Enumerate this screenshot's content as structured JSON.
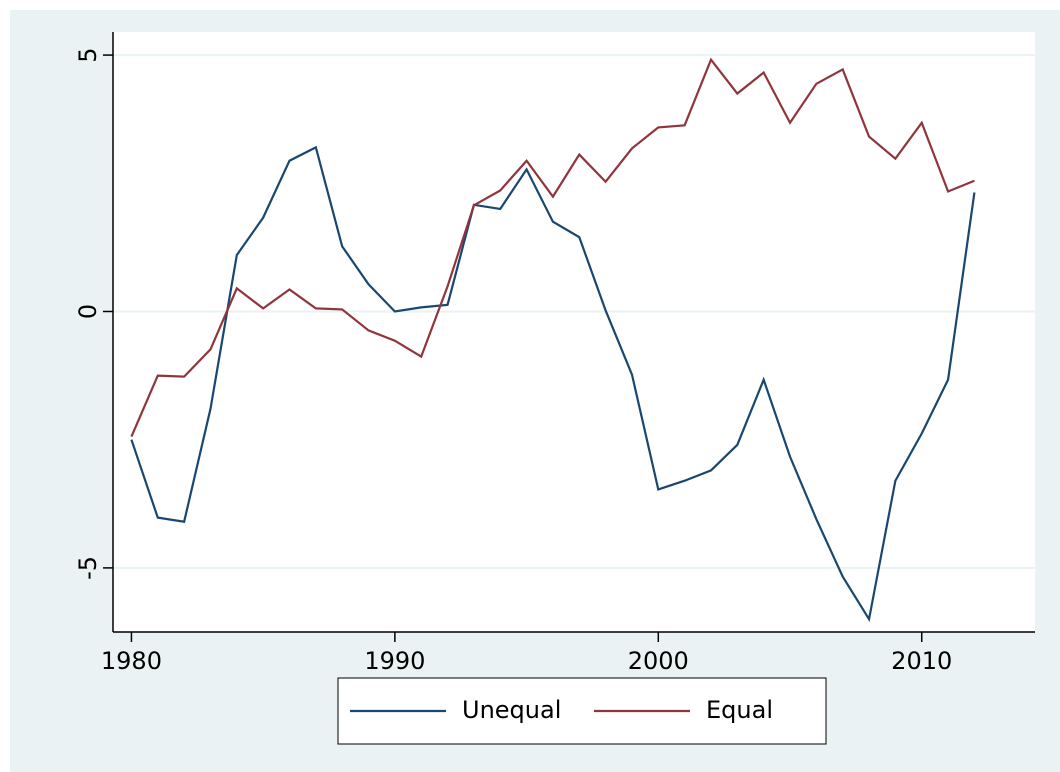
{
  "chart_data": {
    "type": "line",
    "x": [
      1980,
      1981,
      1982,
      1983,
      1984,
      1985,
      1986,
      1987,
      1988,
      1989,
      1990,
      1991,
      1992,
      1993,
      1994,
      1995,
      1996,
      1997,
      1998,
      1999,
      2000,
      2001,
      2002,
      2003,
      2004,
      2005,
      2006,
      2007,
      2008,
      2009,
      2010,
      2011,
      2012
    ],
    "series": [
      {
        "name": "Unequal",
        "color": "#1a476f",
        "values": [
          -2.5,
          -4.02,
          -4.1,
          -1.9,
          1.1,
          1.83,
          2.94,
          3.2,
          1.27,
          0.53,
          0,
          0.08,
          0.13,
          2.08,
          2.0,
          2.77,
          1.75,
          1.45,
          0.02,
          -1.23,
          -3.47,
          -3.3,
          -3.1,
          -2.6,
          -1.33,
          -2.83,
          -4.05,
          -5.17,
          -6.0,
          -3.3,
          -2.38,
          -1.33,
          2.32
        ]
      },
      {
        "name": "Equal",
        "color": "#90353b",
        "values": [
          -2.44,
          -1.25,
          -1.27,
          -0.74,
          0.45,
          0.06,
          0.43,
          0.06,
          0.04,
          -0.37,
          -0.57,
          -0.88,
          0.49,
          2.07,
          2.36,
          2.94,
          2.24,
          3.06,
          2.53,
          3.18,
          3.59,
          3.63,
          4.91,
          4.25,
          4.66,
          3.68,
          4.44,
          4.72,
          3.41,
          2.98,
          3.68,
          2.34,
          2.55
        ]
      }
    ],
    "xlim": [
      1979.3,
      2014.3
    ],
    "xticks": [
      1980,
      1990,
      2000,
      2010
    ],
    "ylim": [
      -6.25,
      5.45
    ],
    "yticks": [
      -5,
      0,
      5
    ],
    "grid": true,
    "legend": "bottom"
  }
}
